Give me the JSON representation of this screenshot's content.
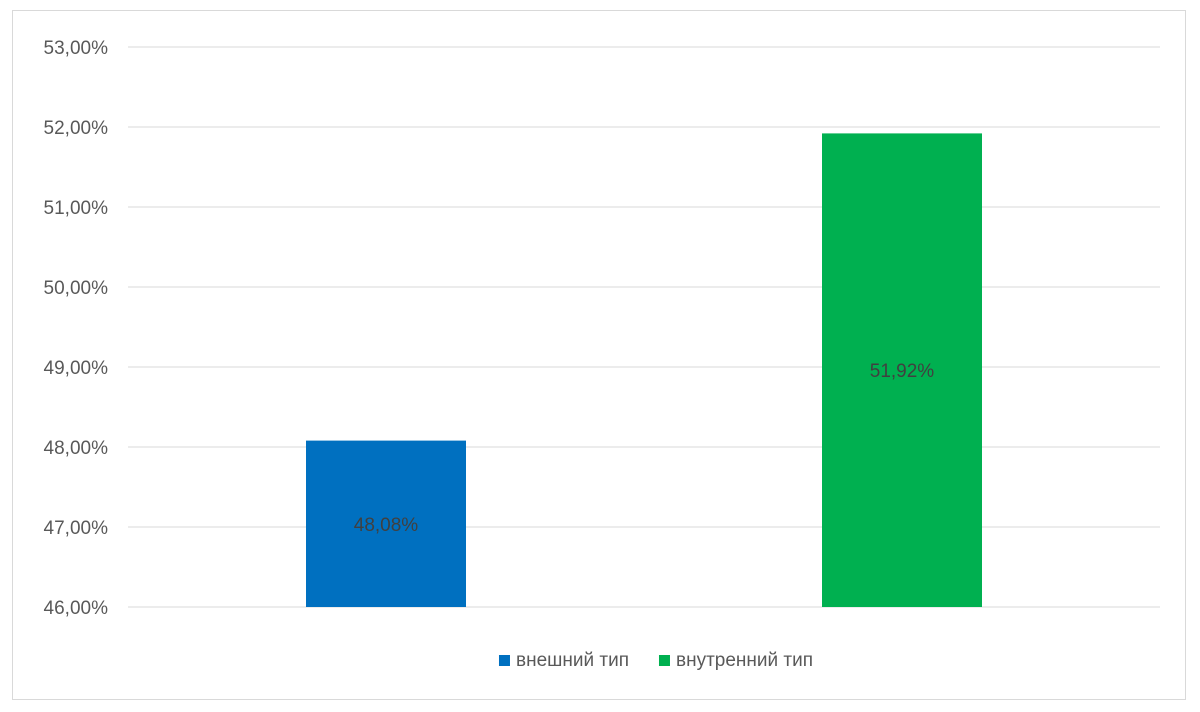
{
  "chart_data": {
    "type": "bar",
    "categories": [
      "внешний тип",
      "внутренний тип"
    ],
    "series": [
      {
        "name": "внешний тип",
        "values": [
          48.08,
          null
        ],
        "color": "#0070c0"
      },
      {
        "name": "внутренний тип",
        "values": [
          null,
          51.92
        ],
        "color": "#00b050"
      }
    ],
    "data_labels": [
      "48,08%",
      "51,92%"
    ],
    "y_ticks": [
      "46,00%",
      "47,00%",
      "48,00%",
      "49,00%",
      "50,00%",
      "51,00%",
      "52,00%",
      "53,00%"
    ],
    "ylim": [
      46,
      53
    ],
    "y_step": 1,
    "grid": true,
    "legend_position": "bottom",
    "gridline_color": "#d9d9d9"
  }
}
